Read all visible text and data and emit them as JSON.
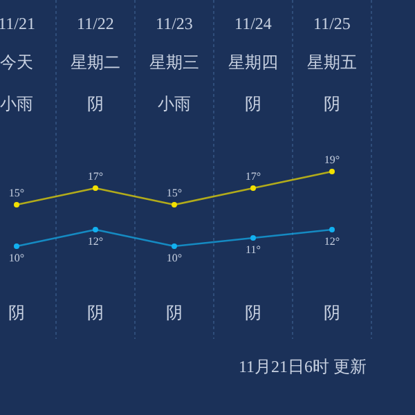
{
  "chart_data": {
    "type": "line",
    "categories": [
      "11/21",
      "11/22",
      "11/23",
      "11/24",
      "11/25"
    ],
    "series": [
      {
        "color": "#f2e000",
        "values": [
          15,
          17,
          15,
          17,
          19
        ],
        "value_labels": [
          "15°",
          "17°",
          "15°",
          "17°",
          "19°"
        ]
      },
      {
        "color": "#12b0f0",
        "values": [
          10,
          12,
          10,
          11,
          12
        ],
        "value_labels": [
          "10°",
          "12°",
          "10°",
          "11°",
          "12°"
        ]
      }
    ],
    "marker": "circle",
    "grid": "x",
    "annotations": [
      "今天",
      "星期二",
      "星期三",
      "星期四",
      "星期五",
      "小雨",
      "阴",
      "小雨",
      "阴",
      "阴",
      "阴",
      "阴",
      "阴",
      "阴",
      "阴",
      "11月21日6时 更新"
    ]
  }
}
